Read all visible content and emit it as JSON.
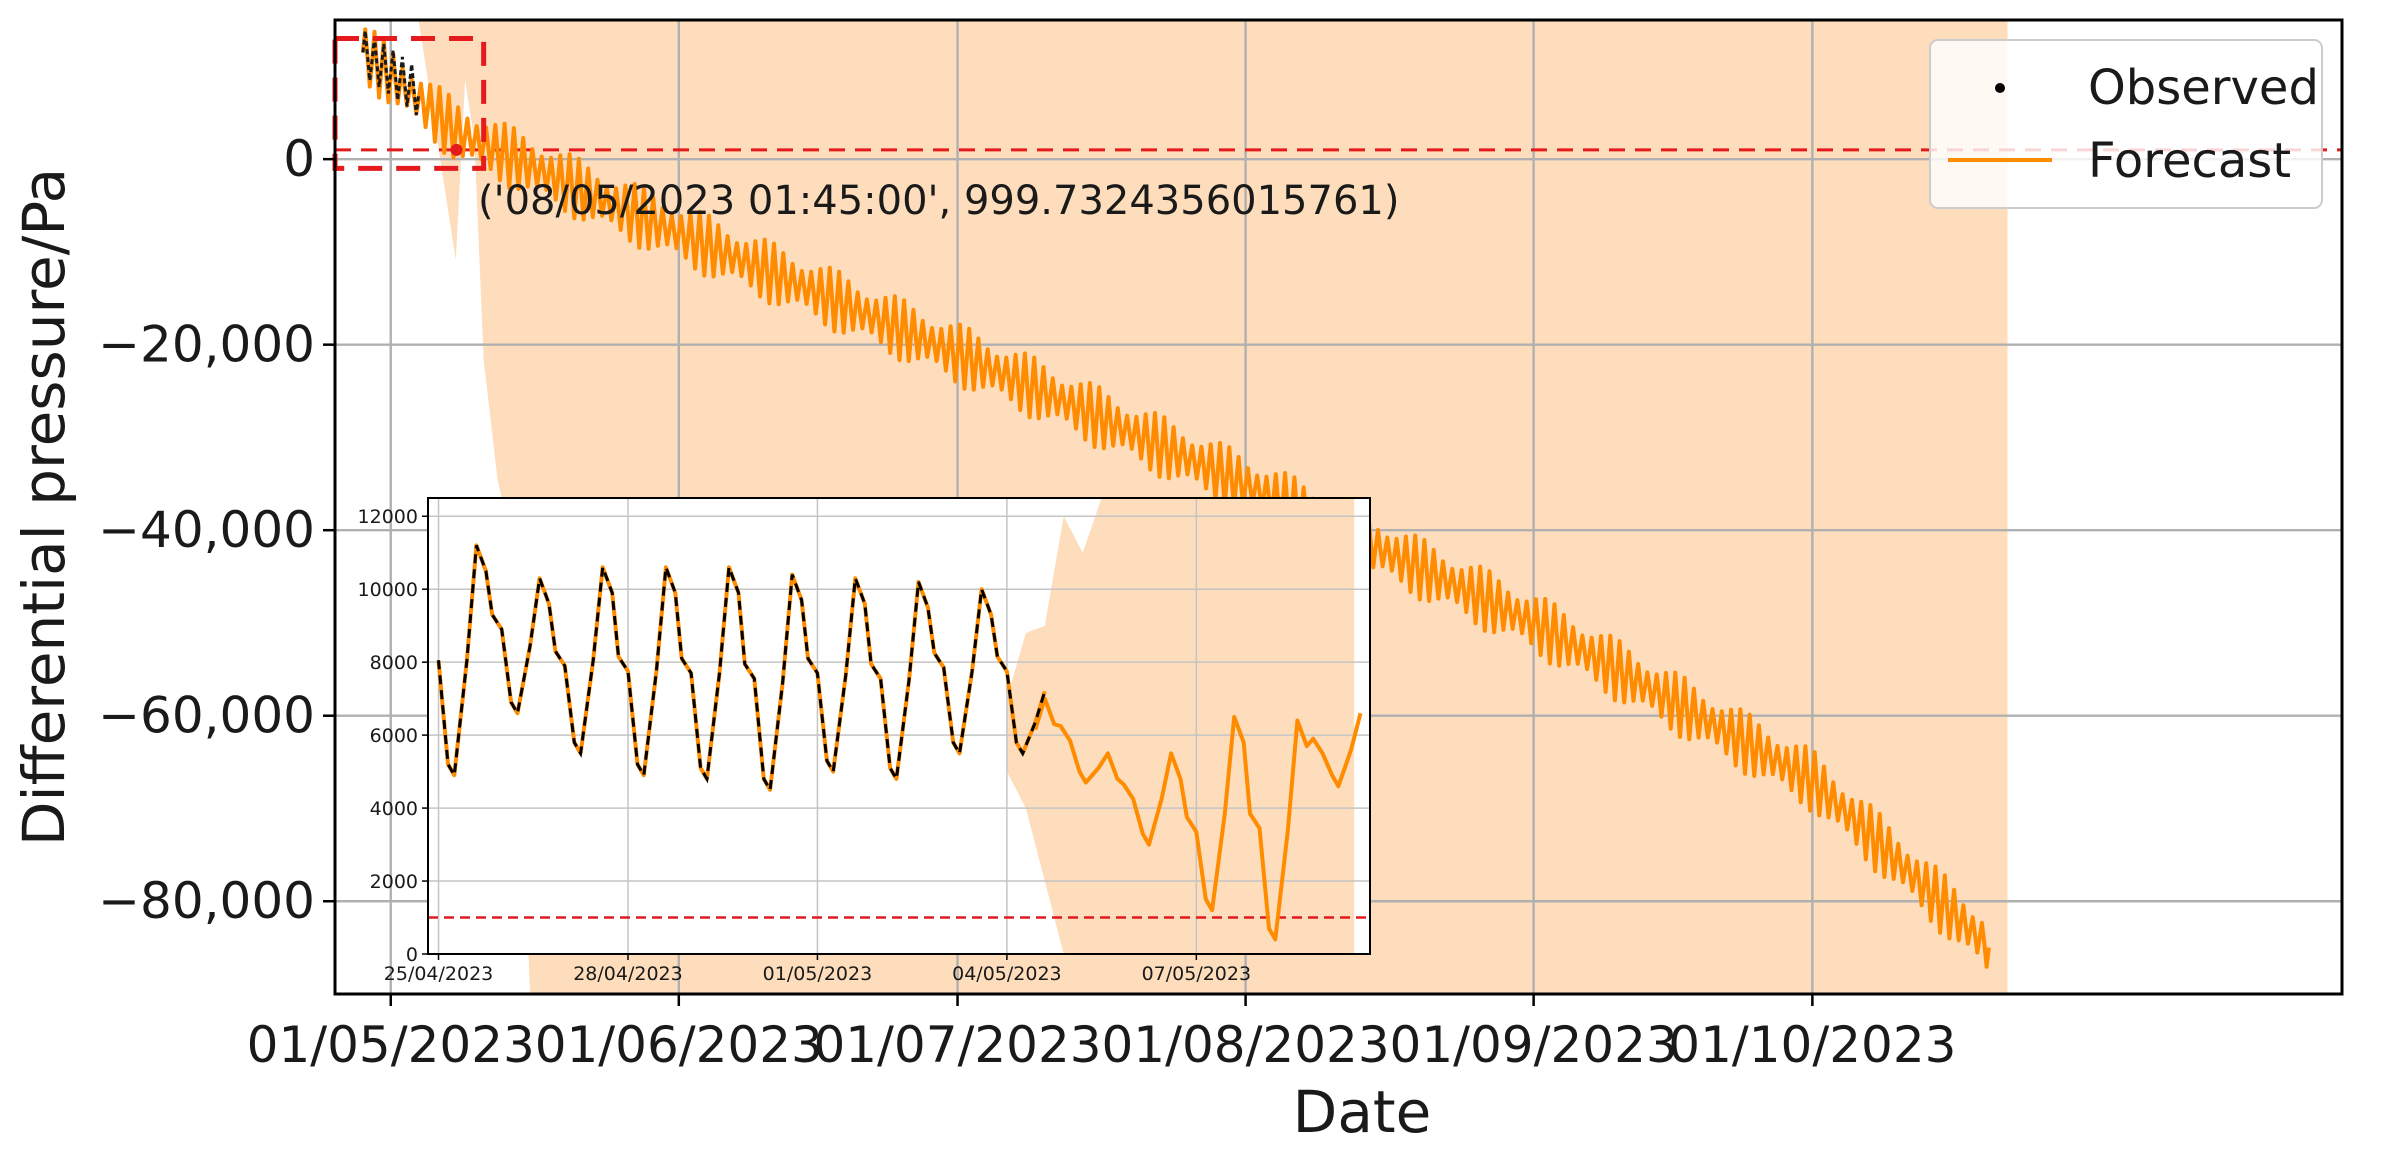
{
  "chart_data": [
    {
      "type": "line",
      "xlabel": "Date",
      "ylabel": "Differential pressure/Pa",
      "xlim": [
        "2023-04-25",
        "2023-11-27"
      ],
      "ylim": [
        -90000,
        15000
      ],
      "x_ticks": [
        "01/05/2023",
        "01/06/2023",
        "01/07/2023",
        "01/08/2023",
        "01/09/2023",
        "01/10/2023"
      ],
      "y_ticks": [
        "0",
        "−20,000",
        "−40,000",
        "−60,000",
        "−80,000"
      ],
      "y_tick_values": [
        0,
        -20000,
        -40000,
        -60000,
        -80000
      ],
      "grid": true,
      "threshold": {
        "value": 1000,
        "color": "#e41a1c",
        "style": "dashed"
      },
      "annotation": {
        "text": "('08/05/2023 01:45:00', 999.7324356015761)",
        "x": "2023-05-08 01:45",
        "y": 999.73
      },
      "zoom_box": {
        "x": [
          "2023-04-25",
          "2023-05-11"
        ],
        "y": [
          -1000,
          13000
        ],
        "color": "#e41a1c"
      },
      "legend": {
        "position": "top-right",
        "entries": [
          {
            "label": "Observed",
            "marker": "dot",
            "color": "#000000"
          },
          {
            "label": "Forecast",
            "marker": "line",
            "color": "#ff8c00"
          }
        ]
      },
      "series": [
        {
          "name": "Observed",
          "color": "#000000",
          "x": [
            "2023-04-28",
            "2023-05-03",
            "2023-05-04"
          ],
          "y": [
            11500,
            8000,
            7000
          ]
        },
        {
          "name": "Forecast",
          "color": "#ff8c00",
          "x": [
            "2023-04-28",
            "2023-05-08",
            "2023-05-25",
            "2023-06-15",
            "2023-07-10",
            "2023-08-05",
            "2023-09-01",
            "2023-10-01",
            "2023-10-20"
          ],
          "y": [
            11500,
            3000,
            -5000,
            -14000,
            -25000,
            -37000,
            -50000,
            -67000,
            -85000
          ],
          "daily_amplitude": 2500,
          "band": {
            "color": "#fdddbb",
            "x_start": "2023-05-04",
            "x_end": "2023-10-22"
          }
        }
      ]
    },
    {
      "type": "line",
      "inset": true,
      "xlim": [
        "2023-04-24 20:00",
        "2023-05-09 18:00"
      ],
      "ylim": [
        0,
        12500
      ],
      "x_ticks": [
        "25/04/2023",
        "28/04/2023",
        "01/05/2023",
        "04/05/2023",
        "07/05/2023"
      ],
      "y_ticks": [
        "0",
        "2000",
        "4000",
        "6000",
        "8000",
        "10000",
        "12000"
      ],
      "y_tick_values": [
        0,
        2000,
        4000,
        6000,
        8000,
        10000,
        12000
      ],
      "grid": true,
      "threshold": {
        "value": 1000,
        "color": "#e41a1c",
        "style": "dashed"
      },
      "series": [
        {
          "name": "Observed",
          "color": "#000000",
          "style": "dashed",
          "x": [
            "2023-04-25 12:00",
            "2023-04-26 12:00",
            "2023-04-27 12:00",
            "2023-04-28 12:00",
            "2023-04-29 12:00",
            "2023-04-30 12:00",
            "2023-05-01 12:00",
            "2023-05-02 12:00",
            "2023-05-03 12:00",
            "2023-05-04 12:00"
          ],
          "peaks": [
            11200,
            10300,
            10600,
            10600,
            10600,
            10400,
            10300,
            10200,
            10000,
            7200
          ],
          "troughs": [
            4900,
            6600,
            5500,
            4900,
            4800,
            4500,
            5000,
            4800,
            5500,
            5500
          ]
        },
        {
          "name": "Forecast",
          "color": "#ff8c00",
          "x": [
            "2023-05-04 12:00",
            "2023-05-05 12:00",
            "2023-05-06 12:00",
            "2023-05-07 12:00",
            "2023-05-08 12:00",
            "2023-05-09 12:00"
          ],
          "peaks": [
            7000,
            5500,
            5500,
            6500,
            6400,
            6600
          ],
          "troughs": [
            5300,
            4700,
            3000,
            1200,
            400,
            4600
          ],
          "band": {
            "color": "#fdddbb"
          }
        }
      ]
    }
  ]
}
